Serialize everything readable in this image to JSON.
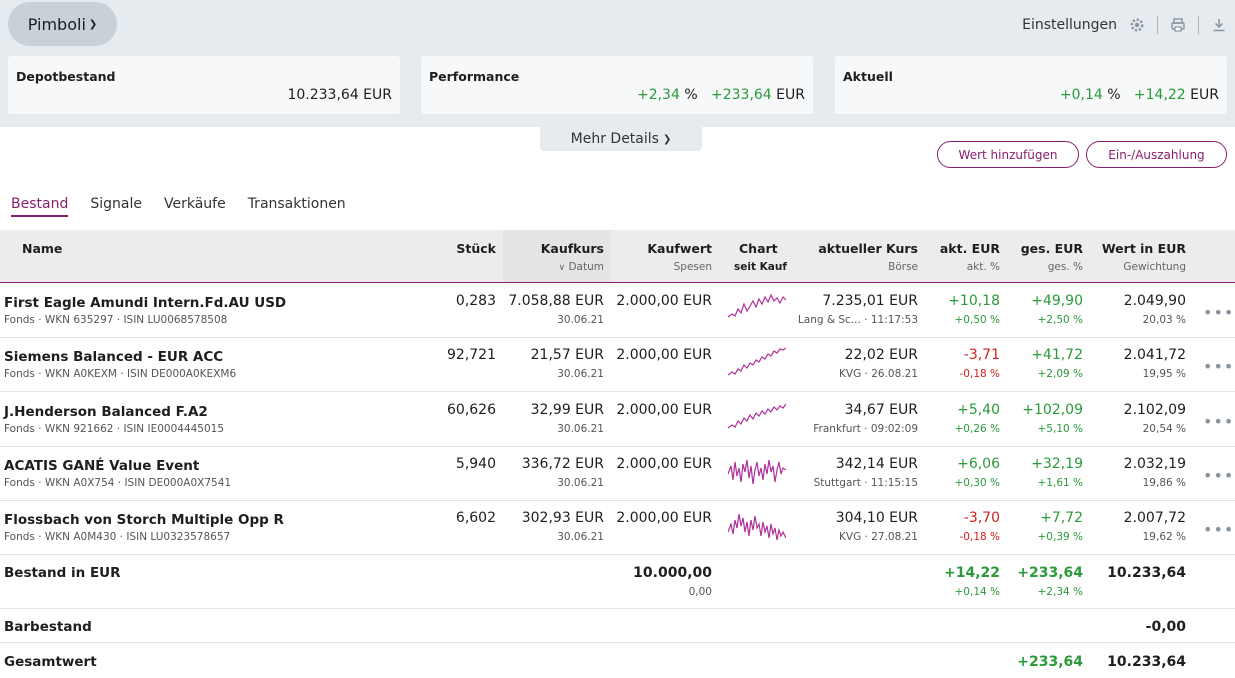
{
  "header": {
    "portfolio_name": "Pimboli",
    "settings_label": "Einstellungen"
  },
  "kpis": {
    "depot": {
      "title": "Depotbestand",
      "value": "10.233,64 EUR"
    },
    "performance": {
      "title": "Performance",
      "pct": "+2,34",
      "pct_unit": "%",
      "abs": "+233,64",
      "abs_unit": "EUR"
    },
    "aktuell": {
      "title": "Aktuell",
      "pct": "+0,14",
      "pct_unit": "%",
      "abs": "+14,22",
      "abs_unit": "EUR"
    }
  },
  "mehr_details": "Mehr Details",
  "buttons": {
    "add_value": "Wert hinzufügen",
    "deposit": "Ein-/Auszahlung"
  },
  "tabs": [
    "Bestand",
    "Signale",
    "Verkäufe",
    "Transaktionen"
  ],
  "columns": {
    "name": "Name",
    "stueck": "Stück",
    "kaufkurs": "Kaufkurs",
    "kaufkurs_sub": "Datum",
    "kaufwert": "Kaufwert",
    "kaufwert_sub": "Spesen",
    "chart": "Chart",
    "chart_sub": "seit Kauf",
    "kurs": "aktueller Kurs",
    "kurs_sub": "Börse",
    "akt": "akt. EUR",
    "akt_sub": "akt. %",
    "ges": "ges. EUR",
    "ges_sub": "ges. %",
    "wert": "Wert in EUR",
    "wert_sub": "Gewichtung"
  },
  "rows": [
    {
      "name": "First Eagle Amundi Intern.Fd.AU USD",
      "meta": "Fonds · WKN 635297 · ISIN LU0068578508",
      "stueck": "0,283",
      "kaufkurs": "7.058,88 EUR",
      "datum": "30.06.21",
      "kaufwert": "2.000,00 EUR",
      "kurs": "7.235,01 EUR",
      "boerse": "Lang & Sc... · 11:17:53",
      "akt": "+10,18",
      "akt_pct": "+0,50 %",
      "ges": "+49,90",
      "ges_pct": "+2,50 %",
      "wert": "2.049,90",
      "gewichtung": "20,03 %"
    },
    {
      "name": "Siemens Balanced - EUR ACC",
      "meta": "Fonds · WKN A0KEXM · ISIN DE000A0KEXM6",
      "stueck": "92,721",
      "kaufkurs": "21,57 EUR",
      "datum": "30.06.21",
      "kaufwert": "2.000,00 EUR",
      "kurs": "22,02 EUR",
      "boerse": "KVG · 26.08.21",
      "akt": "-3,71",
      "akt_pct": "-0,18 %",
      "ges": "+41,72",
      "ges_pct": "+2,09 %",
      "wert": "2.041,72",
      "gewichtung": "19,95 %"
    },
    {
      "name": "J.Henderson Balanced F.A2",
      "meta": "Fonds · WKN 921662 · ISIN IE0004445015",
      "stueck": "60,626",
      "kaufkurs": "32,99 EUR",
      "datum": "30.06.21",
      "kaufwert": "2.000,00 EUR",
      "kurs": "34,67 EUR",
      "boerse": "Frankfurt · 09:02:09",
      "akt": "+5,40",
      "akt_pct": "+0,26 %",
      "ges": "+102,09",
      "ges_pct": "+5,10 %",
      "wert": "2.102,09",
      "gewichtung": "20,54 %"
    },
    {
      "name": "ACATIS GANÉ Value Event",
      "meta": "Fonds · WKN A0X754 · ISIN DE000A0X7541",
      "stueck": "5,940",
      "kaufkurs": "336,72 EUR",
      "datum": "30.06.21",
      "kaufwert": "2.000,00 EUR",
      "kurs": "342,14 EUR",
      "boerse": "Stuttgart · 11:15:15",
      "akt": "+6,06",
      "akt_pct": "+0,30 %",
      "ges": "+32,19",
      "ges_pct": "+1,61 %",
      "wert": "2.032,19",
      "gewichtung": "19,86 %"
    },
    {
      "name": "Flossbach von Storch Multiple Opp R",
      "meta": "Fonds · WKN A0M430 · ISIN LU0323578657",
      "stueck": "6,602",
      "kaufkurs": "302,93 EUR",
      "datum": "30.06.21",
      "kaufwert": "2.000,00 EUR",
      "kurs": "304,10 EUR",
      "boerse": "KVG · 27.08.21",
      "akt": "-3,70",
      "akt_pct": "-0,18 %",
      "ges": "+7,72",
      "ges_pct": "+0,39 %",
      "wert": "2.007,72",
      "gewichtung": "19,62 %"
    }
  ],
  "summary": {
    "bestand_label": "Bestand in EUR",
    "bestand_kaufwert": "10.000,00",
    "bestand_spesen": "0,00",
    "bestand_akt": "+14,22",
    "bestand_akt_pct": "+0,14 %",
    "bestand_ges": "+233,64",
    "bestand_ges_pct": "+2,34 %",
    "bestand_wert": "10.233,64",
    "bar_label": "Barbestand",
    "bar_wert": "-0,00",
    "gesamt_label": "Gesamtwert",
    "gesamt_ges": "+233,64",
    "gesamt_wert": "10.233,64"
  },
  "colors": {
    "accent": "#8a1e6e",
    "positive": "#2a9a3a",
    "negative": "#d21e1e",
    "header_bg": "#e6ebf0",
    "spark": "#b0309a"
  },
  "icons": [
    "chevron-down-icon",
    "gear-icon",
    "printer-icon",
    "download-icon",
    "more-dots-icon",
    "sort-down-icon"
  ]
}
